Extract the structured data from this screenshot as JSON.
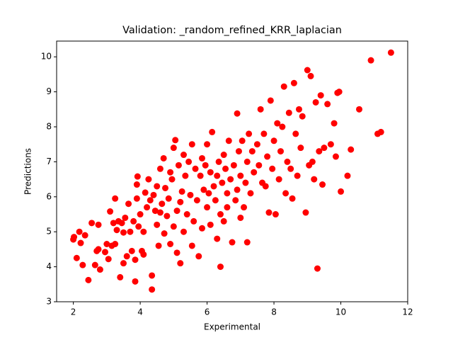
{
  "chart_data": {
    "type": "scatter",
    "title": "Validation: _random_refined_KRR_laplacian",
    "x_label": "Experimental",
    "y_label": "Predictions",
    "color": "#ff0000",
    "xlim": [
      1.5,
      12
    ],
    "ylim": [
      3,
      10.45
    ],
    "xticks": [
      2,
      4,
      6,
      8,
      10,
      12
    ],
    "yticks": [
      3,
      4,
      5,
      6,
      7,
      8,
      9,
      10
    ],
    "grid": false,
    "x": [
      2.0,
      2.02,
      2.1,
      2.18,
      2.22,
      2.28,
      2.35,
      2.45,
      2.55,
      2.65,
      2.7,
      2.75,
      2.8,
      2.75,
      2.95,
      3.0,
      3.05,
      3.1,
      3.15,
      3.2,
      3.25,
      3.25,
      3.3,
      3.35,
      3.4,
      3.45,
      3.5,
      3.5,
      3.55,
      3.6,
      3.65,
      3.7,
      3.75,
      3.8,
      3.85,
      3.85,
      3.9,
      3.9,
      3.92,
      3.95,
      4.0,
      4.05,
      4.1,
      4.1,
      4.15,
      4.2,
      4.25,
      4.3,
      4.35,
      4.35,
      4.4,
      4.45,
      4.5,
      4.5,
      4.55,
      4.6,
      4.6,
      4.65,
      4.7,
      4.72,
      4.75,
      4.8,
      4.85,
      4.9,
      4.9,
      4.95,
      5.0,
      5.0,
      5.05,
      5.1,
      5.1,
      5.15,
      5.2,
      5.2,
      5.25,
      5.3,
      5.3,
      5.35,
      5.4,
      5.45,
      5.5,
      5.55,
      5.55,
      5.6,
      5.65,
      5.7,
      5.75,
      5.8,
      5.85,
      5.85,
      5.9,
      5.95,
      6.0,
      6.0,
      6.05,
      6.1,
      6.1,
      6.15,
      6.2,
      6.25,
      6.3,
      6.3,
      6.35,
      6.4,
      6.4,
      6.45,
      6.5,
      6.5,
      6.55,
      6.6,
      6.6,
      6.65,
      6.7,
      6.75,
      6.8,
      6.85,
      6.9,
      6.9,
      6.95,
      7.0,
      7.0,
      7.05,
      7.1,
      7.15,
      7.2,
      7.2,
      7.25,
      7.3,
      7.35,
      7.4,
      7.5,
      7.55,
      7.6,
      7.65,
      7.7,
      7.75,
      7.8,
      7.85,
      7.9,
      7.95,
      8.0,
      8.05,
      8.1,
      8.15,
      8.2,
      8.25,
      8.3,
      8.35,
      8.4,
      8.45,
      8.5,
      8.55,
      8.6,
      8.65,
      8.7,
      8.75,
      8.8,
      8.85,
      8.95,
      9.0,
      9.05,
      9.1,
      9.15,
      9.2,
      9.25,
      9.3,
      9.35,
      9.4,
      9.45,
      9.5,
      9.6,
      9.7,
      9.8,
      9.85,
      9.9,
      9.95,
      10.0,
      10.2,
      10.3,
      10.55,
      10.9,
      11.1,
      11.2,
      11.5
    ],
    "values": [
      4.78,
      4.85,
      4.25,
      5.0,
      4.68,
      4.05,
      4.9,
      3.62,
      5.25,
      4.05,
      4.45,
      4.5,
      3.92,
      5.2,
      4.42,
      4.65,
      4.22,
      5.58,
      4.6,
      5.25,
      5.95,
      4.65,
      5.05,
      5.3,
      3.7,
      5.25,
      4.98,
      4.1,
      5.4,
      4.3,
      5.8,
      5.0,
      4.45,
      5.3,
      3.58,
      4.2,
      5.95,
      6.35,
      6.58,
      5.15,
      5.5,
      4.45,
      4.35,
      5.0,
      6.12,
      5.7,
      6.5,
      5.9,
      3.35,
      3.75,
      6.05,
      5.6,
      5.2,
      6.3,
      4.6,
      5.55,
      6.8,
      5.8,
      7.1,
      4.95,
      6.25,
      5.45,
      5.95,
      6.7,
      4.65,
      6.5,
      7.4,
      5.15,
      7.62,
      5.6,
      4.4,
      6.9,
      4.1,
      5.85,
      6.15,
      7.2,
      5.0,
      6.6,
      5.5,
      7.0,
      6.05,
      7.5,
      4.6,
      5.3,
      6.8,
      5.9,
      4.3,
      6.6,
      7.1,
      5.1,
      6.2,
      6.9,
      5.7,
      7.5,
      6.1,
      5.2,
      6.7,
      7.85,
      6.3,
      5.9,
      6.6,
      4.8,
      7.0,
      4.0,
      5.5,
      6.4,
      7.2,
      5.3,
      6.8,
      6.1,
      5.7,
      7.6,
      6.5,
      4.7,
      6.9,
      5.9,
      8.38,
      6.2,
      7.3,
      5.4,
      6.6,
      7.6,
      5.7,
      6.4,
      7.0,
      4.7,
      7.8,
      6.1,
      7.3,
      6.7,
      7.5,
      6.9,
      8.5,
      6.4,
      7.8,
      6.3,
      7.15,
      5.55,
      8.75,
      6.8,
      7.6,
      5.5,
      8.1,
      6.5,
      7.3,
      8.0,
      9.15,
      6.1,
      7.0,
      8.4,
      6.8,
      5.95,
      9.25,
      7.8,
      6.6,
      8.5,
      7.4,
      8.3,
      5.55,
      9.62,
      6.9,
      9.45,
      7.0,
      6.5,
      8.7,
      3.95,
      7.3,
      8.9,
      6.35,
      7.4,
      8.65,
      7.5,
      8.1,
      7.15,
      8.97,
      9.0,
      6.15,
      6.6,
      7.35,
      8.5,
      9.9,
      7.8,
      7.85,
      10.12
    ]
  }
}
